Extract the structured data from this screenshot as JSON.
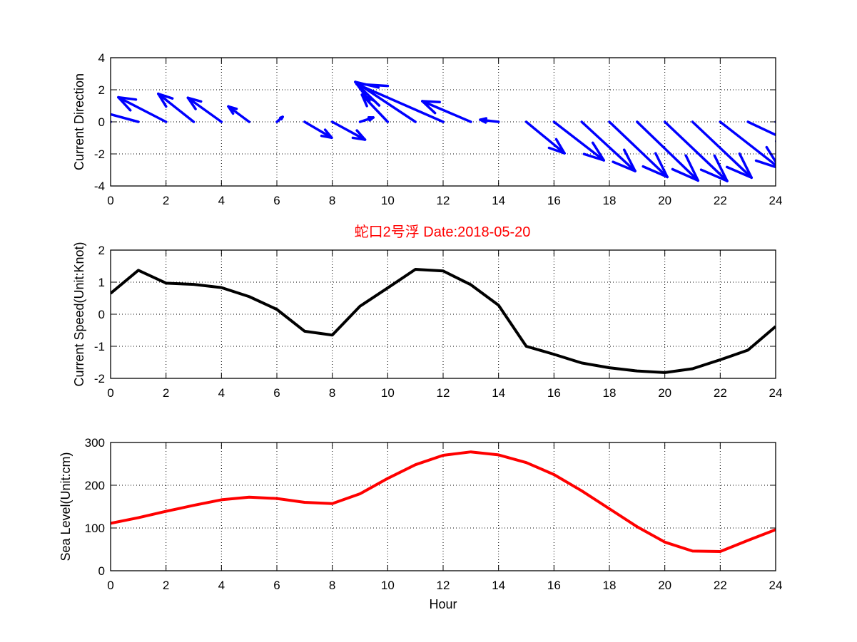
{
  "title": "蛇口2号浮   Date:2018-05-20",
  "chart_data": [
    {
      "type": "quiver",
      "ylabel": "Current Direction",
      "xlabel": "",
      "xlim": [
        0,
        24
      ],
      "ylim": [
        -4,
        4
      ],
      "xticks": [
        0,
        2,
        4,
        6,
        8,
        10,
        12,
        14,
        16,
        18,
        20,
        22,
        24
      ],
      "yticks": [
        -4,
        -2,
        0,
        2,
        4
      ],
      "grid": true,
      "color": "#0000ff",
      "arrows": [
        {
          "x": 0,
          "y": 0,
          "tip": [
            -1.2,
            0.4
          ]
        },
        {
          "x": 1,
          "y": 0,
          "tip": [
            -0.6,
            0.75
          ]
        },
        {
          "x": 2,
          "y": 0,
          "tip": [
            0.28,
            1.53
          ]
        },
        {
          "x": 3,
          "y": 0,
          "tip": [
            1.72,
            1.75
          ]
        },
        {
          "x": 4,
          "y": 0,
          "tip": [
            2.79,
            1.5
          ]
        },
        {
          "x": 5,
          "y": 0,
          "tip": [
            4.25,
            0.96
          ]
        },
        {
          "x": 6,
          "y": 0,
          "tip": [
            6.21,
            0.31
          ]
        },
        {
          "x": 7,
          "y": 0,
          "tip": [
            7.98,
            -0.99
          ]
        },
        {
          "x": 8,
          "y": 0,
          "tip": [
            9.18,
            -1.11
          ]
        },
        {
          "x": 9,
          "y": 0,
          "tip": [
            9.48,
            0.27
          ]
        },
        {
          "x": 10,
          "y": 0,
          "tip": [
            9.07,
            1.69
          ]
        },
        {
          "x": 11,
          "y": 0,
          "tip": [
            8.83,
            2.49
          ]
        },
        {
          "x": 12,
          "y": 0,
          "tip": [
            8.88,
            2.36
          ]
        },
        {
          "x": 13,
          "y": 0,
          "tip": [
            11.25,
            1.29
          ]
        },
        {
          "x": 14,
          "y": 0,
          "tip": [
            13.34,
            0.13
          ]
        },
        {
          "x": 15,
          "y": 0,
          "tip": [
            16.38,
            -1.96
          ]
        },
        {
          "x": 16,
          "y": 0,
          "tip": [
            17.8,
            -2.4
          ]
        },
        {
          "x": 17,
          "y": 0,
          "tip": [
            18.93,
            -3.07
          ]
        },
        {
          "x": 18,
          "y": 0,
          "tip": [
            20.09,
            -3.44
          ]
        },
        {
          "x": 19,
          "y": 0,
          "tip": [
            21.2,
            -3.66
          ]
        },
        {
          "x": 20,
          "y": 0,
          "tip": [
            22.25,
            -3.69
          ]
        },
        {
          "x": 21,
          "y": 0,
          "tip": [
            23.13,
            -3.48
          ]
        },
        {
          "x": 22,
          "y": 0,
          "tip": [
            24.15,
            -2.9
          ]
        },
        {
          "x": 23,
          "y": 0,
          "tip": [
            24.6,
            -1.3
          ]
        },
        {
          "x": 24,
          "y": 0,
          "tip": [
            25.0,
            -0.5
          ]
        }
      ]
    },
    {
      "type": "line",
      "ylabel": "Current Speed(Unit:Knot)",
      "xlabel": "",
      "xlim": [
        0,
        24
      ],
      "ylim": [
        -2,
        2
      ],
      "xticks": [
        0,
        2,
        4,
        6,
        8,
        10,
        12,
        14,
        16,
        18,
        20,
        22,
        24
      ],
      "yticks": [
        -2,
        -1,
        0,
        1,
        2
      ],
      "grid": true,
      "color": "#000000",
      "x": [
        0,
        1,
        2,
        3,
        4,
        5,
        6,
        7,
        8,
        9,
        10,
        11,
        12,
        13,
        14,
        15,
        16,
        17,
        18,
        19,
        20,
        21,
        22,
        23,
        24
      ],
      "values": [
        0.65,
        1.37,
        0.97,
        0.93,
        0.83,
        0.55,
        0.15,
        -0.53,
        -0.65,
        0.25,
        0.82,
        1.4,
        1.35,
        0.92,
        0.28,
        -1.0,
        -1.25,
        -1.52,
        -1.67,
        -1.77,
        -1.82,
        -1.7,
        -1.42,
        -1.12,
        -0.38
      ]
    },
    {
      "type": "line",
      "ylabel": "Sea Level(Unit:cm)",
      "xlabel": "Hour",
      "xlim": [
        0,
        24
      ],
      "ylim": [
        0,
        300
      ],
      "xticks": [
        0,
        2,
        4,
        6,
        8,
        10,
        12,
        14,
        16,
        18,
        20,
        22,
        24
      ],
      "yticks": [
        0,
        100,
        200,
        300
      ],
      "grid": true,
      "color": "#ff0000",
      "x": [
        0,
        1,
        2,
        3,
        4,
        5,
        6,
        7,
        8,
        9,
        10,
        11,
        12,
        13,
        14,
        15,
        16,
        17,
        18,
        19,
        20,
        21,
        22,
        23,
        24
      ],
      "values": [
        111,
        124,
        139,
        153,
        166,
        172,
        169,
        160,
        157,
        180,
        216,
        248,
        270,
        278,
        271,
        253,
        225,
        187,
        145,
        103,
        67,
        46,
        45,
        71,
        96
      ]
    }
  ]
}
